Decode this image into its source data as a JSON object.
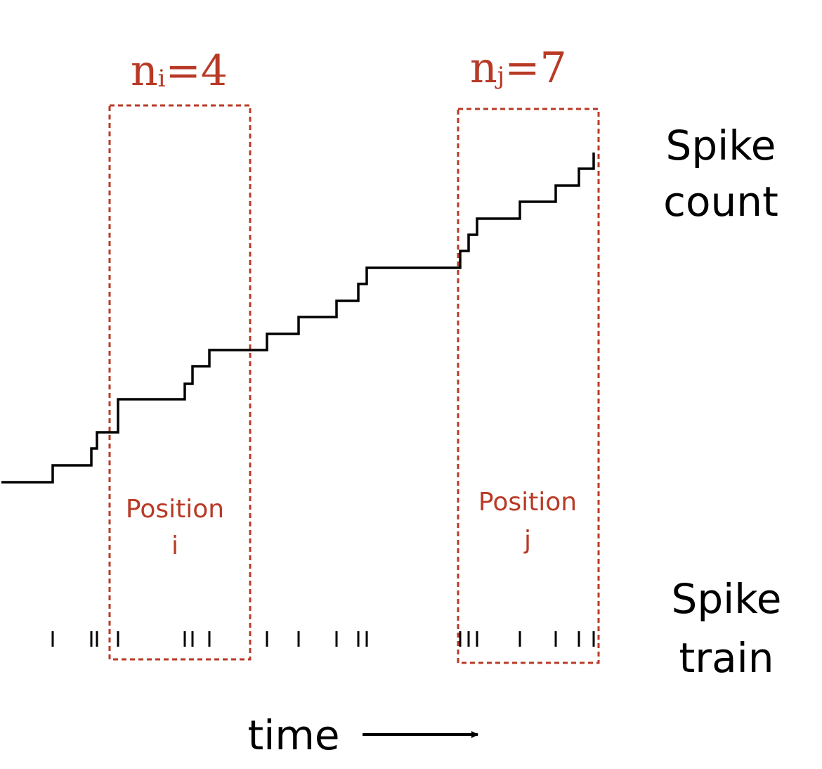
{
  "labels": {
    "spike_count": [
      "Spike",
      "count"
    ],
    "spike_train": [
      "Spike",
      "train"
    ],
    "time": "time"
  },
  "windows": [
    {
      "count_base": "n",
      "count_sub": "i",
      "count_value": "=4",
      "position_lines": [
        "Position",
        "i"
      ]
    },
    {
      "count_base": "n",
      "count_sub": "j",
      "count_value": "=7",
      "position_lines": [
        "Position",
        "j"
      ]
    }
  ],
  "colors": {
    "accent": "#b83a26",
    "line": "#000000"
  }
}
